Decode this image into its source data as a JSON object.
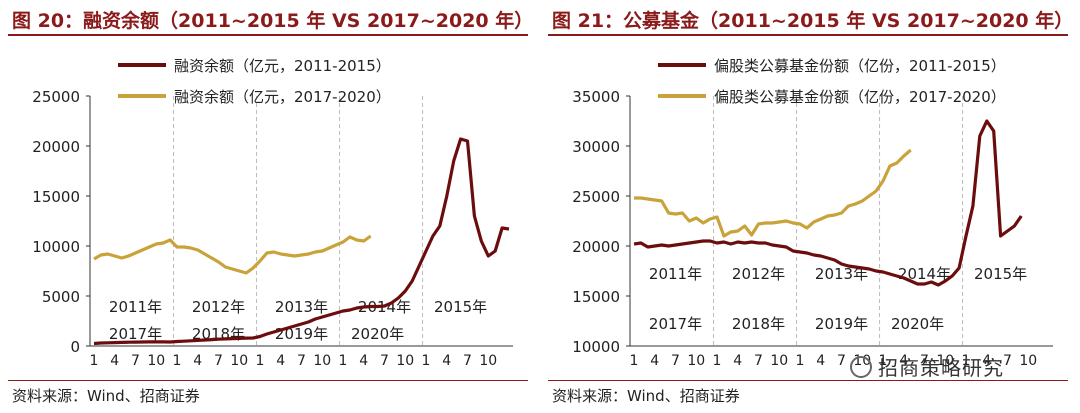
{
  "chart_data": [
    {
      "type": "line",
      "title": "图 20：融资余额（2011~2015 年 VS 2017~2020 年）",
      "source": "资料来源：Wind、招商证券",
      "ylim": [
        0,
        25000
      ],
      "yticks": [
        "0",
        "5000",
        "10000",
        "15000",
        "20000",
        "25000"
      ],
      "grid": true,
      "legend_position": "top",
      "x_ticks": [
        "1",
        "4",
        "7",
        "10",
        "1",
        "4",
        "7",
        "10",
        "1",
        "4",
        "7",
        "10",
        "1",
        "4",
        "7",
        "10",
        "1",
        "4",
        "7",
        "10"
      ],
      "x_tick_index": [
        0,
        3,
        6,
        9,
        12,
        15,
        18,
        21,
        24,
        27,
        30,
        33,
        36,
        39,
        42,
        45,
        48,
        51,
        54,
        57
      ],
      "year_labels_top": [
        "2011年",
        "2012年",
        "2013年",
        "2014年",
        "2015年"
      ],
      "year_labels_bottom": [
        "2017年",
        "2018年",
        "2019年",
        "2020年"
      ],
      "series": [
        {
          "name": "融资余额（亿元，2011-2015）",
          "color": "#6b0d0d",
          "values": [
            250,
            300,
            320,
            340,
            360,
            380,
            390,
            400,
            410,
            420,
            410,
            400,
            450,
            480,
            520,
            560,
            600,
            640,
            680,
            710,
            740,
            760,
            790,
            800,
            950,
            1200,
            1400,
            1600,
            1800,
            2000,
            2200,
            2400,
            2700,
            2900,
            3100,
            3300,
            3500,
            3600,
            3800,
            3900,
            3950,
            3950,
            4000,
            4300,
            4800,
            5500,
            6500,
            8000,
            9500,
            11000,
            12000,
            15000,
            18500,
            20700,
            20500,
            13000,
            10500,
            9000,
            9500,
            11800,
            11700
          ]
        },
        {
          "name": "融资余额（亿元，2017-2020）",
          "color": "#c9a23a",
          "values": [
            8700,
            9100,
            9200,
            9000,
            8800,
            9000,
            9300,
            9600,
            9900,
            10200,
            10300,
            10600,
            9900,
            9900,
            9800,
            9600,
            9200,
            8800,
            8400,
            7900,
            7700,
            7500,
            7300,
            7800,
            8500,
            9300,
            9400,
            9200,
            9100,
            9000,
            9100,
            9200,
            9400,
            9500,
            9800,
            10100,
            10400,
            10900,
            10600,
            10500,
            11000
          ]
        }
      ]
    },
    {
      "type": "line",
      "title": "图 21：公募基金（2011~2015 年 VS 2017~2020 年）",
      "source": "资料来源：Wind、招商证券",
      "ylim": [
        10000,
        35000
      ],
      "yticks": [
        "10000",
        "15000",
        "20000",
        "25000",
        "30000",
        "35000"
      ],
      "grid": true,
      "legend_position": "top",
      "x_ticks": [
        "1",
        "4",
        "7",
        "10",
        "1",
        "4",
        "7",
        "10",
        "1",
        "4",
        "7",
        "10",
        "1",
        "4",
        "7",
        "10",
        "1",
        "4",
        "7",
        "10"
      ],
      "x_tick_index": [
        0,
        3,
        6,
        9,
        12,
        15,
        18,
        21,
        24,
        27,
        30,
        33,
        36,
        39,
        42,
        45,
        48,
        51,
        54,
        57
      ],
      "year_labels_top": [
        "2011年",
        "2012年",
        "2013年",
        "2014年",
        "2015年"
      ],
      "year_labels_bottom": [
        "2017年",
        "2018年",
        "2019年",
        "2020年"
      ],
      "series": [
        {
          "name": "偏股类公募基金份额（亿份，2011-2015）",
          "color": "#6b0d0d",
          "values": [
            20200,
            20300,
            19900,
            20000,
            20100,
            20000,
            20100,
            20200,
            20300,
            20400,
            20500,
            20500,
            20300,
            20400,
            20200,
            20400,
            20300,
            20400,
            20300,
            20300,
            20100,
            20000,
            19900,
            19500,
            19400,
            19300,
            19100,
            19000,
            18800,
            18600,
            18200,
            18000,
            17900,
            17800,
            17700,
            17500,
            17400,
            17200,
            17000,
            16800,
            16500,
            16200,
            16200,
            16400,
            16100,
            16500,
            17000,
            17800,
            21000,
            24000,
            31000,
            32500,
            31500,
            21000,
            21500,
            22000,
            23000
          ]
        },
        {
          "name": "偏股类公募基金份额（亿份，2017-2020）",
          "color": "#c9a23a",
          "values": [
            24800,
            24800,
            24700,
            24600,
            24500,
            23300,
            23200,
            23300,
            22500,
            22800,
            22300,
            22700,
            22900,
            21000,
            21400,
            21500,
            22000,
            21100,
            22200,
            22300,
            22300,
            22400,
            22500,
            22300,
            22200,
            21800,
            22400,
            22700,
            23000,
            23100,
            23300,
            24000,
            24200,
            24500,
            25000,
            25500,
            26500,
            28000,
            28300,
            29000,
            29600
          ]
        }
      ]
    }
  ],
  "watermark": "招商策略研究"
}
